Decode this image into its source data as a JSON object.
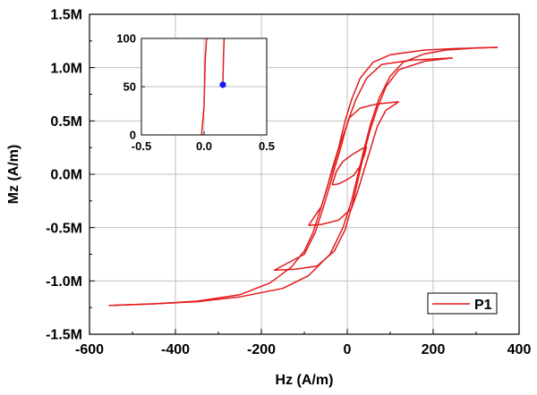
{
  "chart_data": [
    {
      "id": "main",
      "type": "line",
      "title": "",
      "xlabel": "Hz (A/m)",
      "ylabel": "Mz (A/m)",
      "xlim": [
        -600,
        400
      ],
      "ylim": [
        -1500000,
        1500000
      ],
      "grid": true,
      "legend_position": "bottom-right",
      "x_ticks": [
        {
          "value": -600,
          "label": "-600"
        },
        {
          "value": -400,
          "label": "-400"
        },
        {
          "value": -200,
          "label": "-200"
        },
        {
          "value": 0,
          "label": "0"
        },
        {
          "value": 200,
          "label": "200"
        },
        {
          "value": 400,
          "label": "400"
        }
      ],
      "y_ticks": [
        {
          "value": -1500000,
          "label": "-1.5M"
        },
        {
          "value": -1000000,
          "label": "-1.0M"
        },
        {
          "value": -500000,
          "label": "-0.5M"
        },
        {
          "value": 0,
          "label": "0.0M"
        },
        {
          "value": 500000,
          "label": "0.5M"
        },
        {
          "value": 1000000,
          "label": "1.0M"
        },
        {
          "value": 1500000,
          "label": "1.5M"
        }
      ],
      "series": [
        {
          "name": "P1",
          "color": "#e31a1c",
          "loops": [
            {
              "upper": [
                [
                  -555,
                  -1230000
                ],
                [
                  -450,
                  -1215000
                ],
                [
                  -350,
                  -1190000
                ],
                [
                  -250,
                  -1130000
                ],
                [
                  -180,
                  -1020000
                ],
                [
                  -130,
                  -870000
                ],
                [
                  -100,
                  -720000
                ],
                [
                  -80,
                  -550000
                ],
                [
                  -60,
                  -300000
                ],
                [
                  -45,
                  -100000
                ],
                [
                  -35,
                  50000
                ],
                [
                  -20,
                  250000
                ],
                [
                  -5,
                  500000
                ],
                [
                  10,
                  700000
                ],
                [
                  30,
                  900000
                ],
                [
                  60,
                  1050000
                ],
                [
                  100,
                  1120000
                ],
                [
                  180,
                  1165000
                ],
                [
                  260,
                  1180000
                ],
                [
                  350,
                  1190000
                ]
              ],
              "lower": [
                [
                  350,
                  1190000
                ],
                [
                  300,
                  1185000
                ],
                [
                  230,
                  1165000
                ],
                [
                  180,
                  1130000
                ],
                [
                  130,
                  1050000
                ],
                [
                  100,
                  920000
                ],
                [
                  75,
                  720000
                ],
                [
                  55,
                  480000
                ],
                [
                  40,
                  250000
                ],
                [
                  25,
                  0
                ],
                [
                  10,
                  -250000
                ],
                [
                  -10,
                  -500000
                ],
                [
                  -40,
                  -750000
                ],
                [
                  -90,
                  -950000
                ],
                [
                  -150,
                  -1070000
                ],
                [
                  -250,
                  -1150000
                ],
                [
                  -350,
                  -1195000
                ],
                [
                  -450,
                  -1215000
                ],
                [
                  -555,
                  -1230000
                ]
              ]
            },
            {
              "upper": [
                [
                  -170,
                  -900000
                ],
                [
                  -100,
                  -750000
                ],
                [
                  -75,
                  -550000
                ],
                [
                  -55,
                  -300000
                ],
                [
                  -40,
                  -100000
                ],
                [
                  -30,
                  50000
                ],
                [
                  -15,
                  250000
                ],
                [
                  0,
                  480000
                ],
                [
                  20,
                  700000
                ],
                [
                  45,
                  900000
                ],
                [
                  80,
                  1030000
                ],
                [
                  150,
                  1070000
                ],
                [
                  245,
                  1090000
                ]
              ],
              "lower": [
                [
                  245,
                  1090000
                ],
                [
                  180,
                  1060000
                ],
                [
                  120,
                  980000
                ],
                [
                  90,
                  820000
                ],
                [
                  70,
                  620000
                ],
                [
                  52,
                  400000
                ],
                [
                  38,
                  180000
                ],
                [
                  25,
                  -50000
                ],
                [
                  12,
                  -280000
                ],
                [
                  -5,
                  -520000
                ],
                [
                  -30,
                  -720000
                ],
                [
                  -70,
                  -860000
                ],
                [
                  -120,
                  -890000
                ],
                [
                  -170,
                  -900000
                ]
              ]
            },
            {
              "upper": [
                [
                  -90,
                  -480000
                ],
                [
                  -60,
                  -300000
                ],
                [
                  -45,
                  -100000
                ],
                [
                  -30,
                  100000
                ],
                [
                  -15,
                  300000
                ],
                [
                  5,
                  530000
                ],
                [
                  30,
                  620000
                ],
                [
                  70,
                  660000
                ],
                [
                  120,
                  680000
                ]
              ],
              "lower": [
                [
                  120,
                  680000
                ],
                [
                  90,
                  600000
                ],
                [
                  70,
                  450000
                ],
                [
                  55,
                  250000
                ],
                [
                  40,
                  50000
                ],
                [
                  25,
                  -150000
                ],
                [
                  10,
                  -320000
                ],
                [
                  -20,
                  -430000
                ],
                [
                  -60,
                  -470000
                ],
                [
                  -90,
                  -480000
                ]
              ]
            },
            {
              "upper": [
                [
                  -35,
                  -100000
                ],
                [
                  -25,
                  30000
                ],
                [
                  -10,
                  120000
                ],
                [
                  10,
                  180000
                ],
                [
                  30,
                  230000
                ],
                [
                  45,
                  260000
                ]
              ],
              "lower": [
                [
                  45,
                  260000
                ],
                [
                  40,
                  180000
                ],
                [
                  30,
                  80000
                ],
                [
                  15,
                  -10000
                ],
                [
                  -5,
                  -60000
                ],
                [
                  -20,
                  -90000
                ],
                [
                  -35,
                  -100000
                ]
              ]
            }
          ]
        }
      ]
    },
    {
      "id": "inset",
      "type": "line",
      "title": "",
      "xlabel": "",
      "ylabel": "",
      "xlim": [
        -0.5,
        0.5
      ],
      "ylim": [
        0,
        100
      ],
      "grid": true,
      "x_ticks": [
        {
          "value": -0.5,
          "label": "-0.5"
        },
        {
          "value": 0.0,
          "label": "0.0"
        },
        {
          "value": 0.5,
          "label": "0.5"
        }
      ],
      "y_ticks": [
        {
          "value": 0,
          "label": "0"
        },
        {
          "value": 50,
          "label": "50"
        },
        {
          "value": 100,
          "label": "100"
        }
      ],
      "series": [
        {
          "name": "P1",
          "color": "#e31a1c",
          "x": [
            -0.02,
            0.0,
            0.01,
            0.02
          ],
          "y": [
            0,
            30,
            80,
            100
          ]
        },
        {
          "name": "P1",
          "color": "#e31a1c",
          "x": [
            0.15,
            0.155,
            0.16
          ],
          "y": [
            52,
            80,
            100
          ]
        }
      ],
      "marker": {
        "x": 0.15,
        "y": 52,
        "color": "#1a1aff"
      }
    }
  ],
  "legend": {
    "label": "P1",
    "color": "#e31a1c"
  }
}
